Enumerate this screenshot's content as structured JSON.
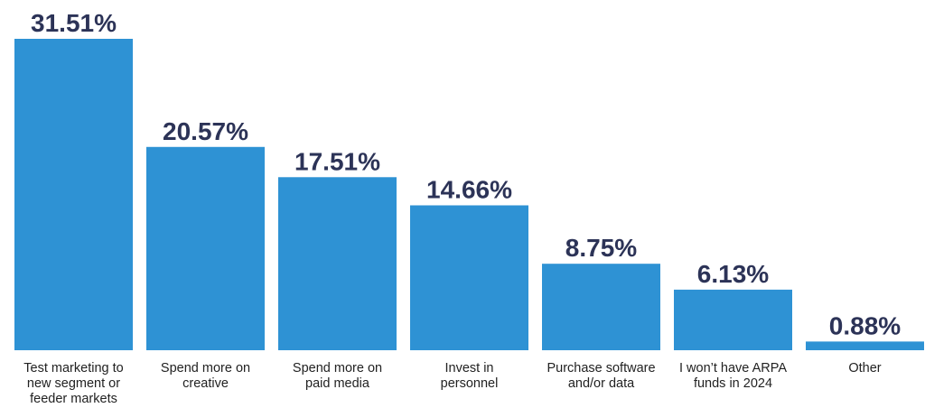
{
  "chart_data": {
    "type": "bar",
    "categories": [
      "Test marketing to new segment or feeder markets",
      "Spend more on creative",
      "Spend more on paid media",
      "Invest in personnel",
      "Purchase software and/or data",
      "I won't have ARPA funds in 2024",
      "Other"
    ],
    "category_lines": [
      [
        "Test marketing to",
        "new segment or",
        "feeder markets"
      ],
      [
        "Spend more on",
        "creative"
      ],
      [
        "Spend more on",
        "paid media"
      ],
      [
        "Invest in",
        "personnel"
      ],
      [
        "Purchase software",
        "and/or data"
      ],
      [
        "I won’t have ARPA",
        "funds in 2024"
      ],
      [
        "Other"
      ]
    ],
    "values": [
      31.51,
      20.57,
      17.51,
      14.66,
      8.75,
      6.13,
      0.88
    ],
    "value_labels": [
      "31.51%",
      "20.57%",
      "17.51%",
      "14.66%",
      "8.75%",
      "6.13%",
      "0.88%"
    ],
    "title": "",
    "xlabel": "",
    "ylabel": "",
    "ylim": [
      0,
      31.51
    ],
    "grid": false,
    "bar_color": "#2e92d4",
    "label_color": "#2c3357"
  }
}
